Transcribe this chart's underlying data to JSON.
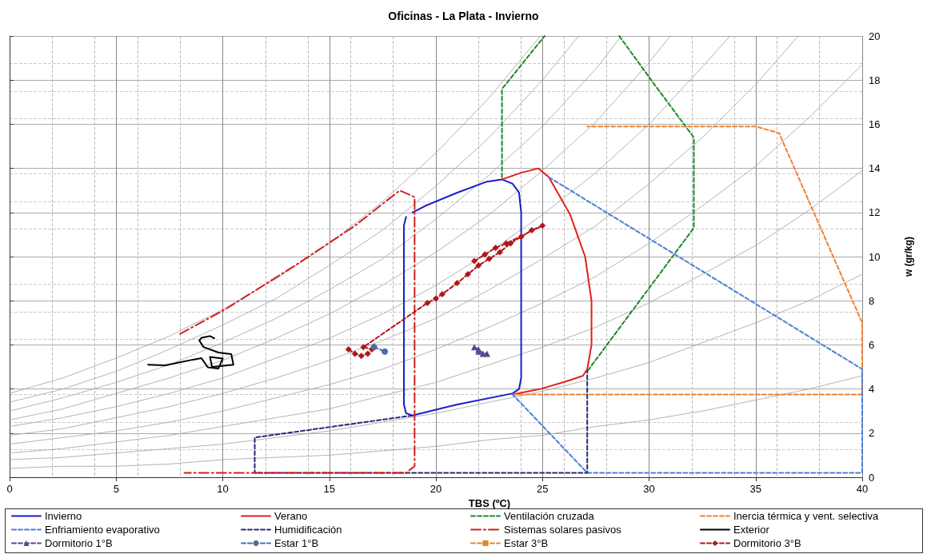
{
  "chart_data": {
    "type": "line",
    "title": "Oficinas - La Plata - Invierno",
    "xlabel": "TBS (ºC)",
    "ylabel": "w (gr/kg)",
    "xlim": [
      0,
      40
    ],
    "xticks": [
      0,
      5,
      10,
      15,
      20,
      25,
      30,
      35,
      40
    ],
    "ylim": [
      0,
      20
    ],
    "yticks": [
      0,
      2,
      4,
      6,
      8,
      10,
      12,
      14,
      16,
      18,
      20
    ],
    "grid": true,
    "legend": "bottom",
    "series": [
      {
        "color": "#a0a0a0",
        "marker": "none",
        "line_style": "solid",
        "x": [
          0,
          2.5,
          5,
          7.5,
          10,
          12.5,
          15,
          17.5,
          20,
          22.5,
          24.9
        ],
        "values": [
          3.8,
          4.5,
          5.4,
          6.4,
          7.6,
          9.0,
          10.6,
          12.5,
          14.7,
          17.2,
          20
        ]
      },
      {
        "color": "#a0a0a0",
        "marker": "none",
        "line_style": "solid",
        "x": [
          0,
          2.5,
          5,
          7.5,
          10,
          12.5,
          15,
          17.5,
          20,
          22.5,
          25,
          26.7
        ],
        "values": [
          3.4,
          4.0,
          4.8,
          5.8,
          6.9,
          8.1,
          9.6,
          11.2,
          13.2,
          15.4,
          18.0,
          20
        ]
      },
      {
        "color": "#a0a0a0",
        "marker": "none",
        "line_style": "solid",
        "x": [
          0,
          2.5,
          5,
          7.5,
          10,
          12.5,
          15,
          17.5,
          20,
          22.5,
          25,
          27.5,
          28.7
        ],
        "values": [
          3.0,
          3.6,
          4.3,
          5.1,
          6.1,
          7.2,
          8.5,
          9.9,
          11.7,
          13.7,
          15.9,
          18.5,
          20
        ]
      },
      {
        "color": "#a0a0a0",
        "marker": "none",
        "line_style": "solid",
        "x": [
          0,
          2.5,
          5,
          7.5,
          10,
          12.5,
          15,
          17.5,
          20,
          22.5,
          25,
          27.5,
          30,
          31
        ],
        "values": [
          2.6,
          3.1,
          3.8,
          4.5,
          5.3,
          6.3,
          7.4,
          8.7,
          10.2,
          11.9,
          13.9,
          16.1,
          18.8,
          20
        ]
      },
      {
        "color": "#a0a0a0",
        "marker": "none",
        "line_style": "solid",
        "x": [
          0,
          2.5,
          5,
          7.5,
          10,
          12.5,
          15,
          17.5,
          20,
          22.5,
          25,
          27.5,
          30,
          32.5,
          33.8
        ],
        "values": [
          2.3,
          2.7,
          3.2,
          3.8,
          4.5,
          5.4,
          6.3,
          7.4,
          8.7,
          10.2,
          11.9,
          13.8,
          16.0,
          18.6,
          20
        ]
      },
      {
        "color": "#a0a0a0",
        "marker": "none",
        "line_style": "solid",
        "x": [
          0,
          2.5,
          5,
          7.5,
          10,
          12.5,
          15,
          17.5,
          20,
          22.5,
          25,
          27.5,
          30,
          32.5,
          35,
          37
        ],
        "values": [
          1.9,
          2.2,
          2.7,
          3.2,
          3.8,
          4.5,
          5.3,
          6.2,
          7.2,
          8.5,
          9.9,
          11.4,
          13.3,
          15.4,
          17.8,
          20
        ]
      },
      {
        "color": "#a0a0a0",
        "marker": "none",
        "line_style": "solid",
        "x": [
          0,
          2.5,
          5,
          7.5,
          10,
          12.5,
          15,
          17.5,
          20,
          22.5,
          25,
          27.5,
          30,
          32.5,
          35,
          37.5,
          40
        ],
        "values": [
          1.5,
          1.8,
          2.1,
          2.5,
          3.0,
          3.6,
          4.2,
          4.9,
          5.8,
          6.8,
          7.9,
          9.1,
          10.6,
          12.3,
          14.1,
          16.3,
          18.7
        ]
      },
      {
        "color": "#a0a0a0",
        "marker": "none",
        "line_style": "solid",
        "x": [
          0,
          2.5,
          5,
          7.5,
          10,
          12.5,
          15,
          17.5,
          20,
          22.5,
          25,
          27.5,
          30,
          32.5,
          35,
          37.5,
          40
        ],
        "values": [
          1.1,
          1.3,
          1.6,
          1.9,
          2.3,
          2.7,
          3.1,
          3.7,
          4.3,
          5.1,
          5.9,
          6.8,
          7.9,
          9.2,
          10.5,
          12.1,
          13.9
        ]
      },
      {
        "color": "#a0a0a0",
        "marker": "none",
        "line_style": "solid",
        "x": [
          0,
          2.5,
          5,
          7.5,
          10,
          12.5,
          15,
          17.5,
          20,
          22.5,
          25,
          27.5,
          30,
          32.5,
          35,
          37.5,
          40
        ],
        "values": [
          0.8,
          0.9,
          1.1,
          1.3,
          1.5,
          1.8,
          2.1,
          2.5,
          2.9,
          3.4,
          3.9,
          4.5,
          5.2,
          6.1,
          7.0,
          8.0,
          9.2
        ]
      },
      {
        "color": "#a0a0a0",
        "marker": "none",
        "line_style": "solid",
        "x": [
          0,
          2.5,
          5,
          7.5,
          10,
          12.5,
          15,
          17.5,
          20,
          22.5,
          25,
          27.5,
          30,
          32.5,
          35,
          37.5,
          40
        ],
        "values": [
          0.4,
          0.5,
          0.5,
          0.6,
          0.8,
          0.9,
          1.0,
          1.2,
          1.4,
          1.7,
          1.9,
          2.3,
          2.6,
          3.0,
          3.5,
          4.0,
          4.6
        ]
      },
      {
        "name": "Invierno",
        "color": "#1c1cc8",
        "marker": "none",
        "line_style": "solid",
        "x": [
          18.9,
          19.5,
          21,
          22.4,
          23.1,
          23.6,
          23.9,
          24.0,
          24.0,
          23.9,
          23.6,
          21,
          18.9,
          18.6,
          18.5,
          18.5,
          18.6
        ],
        "values": [
          12.0,
          12.3,
          12.9,
          13.4,
          13.5,
          13.3,
          12.9,
          12,
          4.5,
          4.0,
          3.8,
          3.3,
          2.8,
          2.9,
          3.3,
          11.4,
          11.8
        ]
      },
      {
        "name": "Verano",
        "color": "#e02020",
        "marker": "none",
        "line_style": "solid",
        "x": [
          23.1,
          24.0,
          24.8,
          25.3,
          26.3,
          27.0,
          27.3,
          27.3,
          27.1,
          26.9,
          26.3,
          24.9,
          23.6
        ],
        "values": [
          13.5,
          13.8,
          14.0,
          13.6,
          11.9,
          10,
          8,
          6,
          4.9,
          4.6,
          4.4,
          4.0,
          3.75
        ]
      },
      {
        "name": "Ventilación cruzada",
        "color": "#1a8a2a",
        "marker": "none",
        "line_style": "dashed",
        "x": [
          23.1,
          23.1,
          25.1,
          26.8,
          28.6,
          30.1,
          32.1,
          32.1,
          27.1
        ],
        "values": [
          13.6,
          17.6,
          20,
          null,
          20,
          18,
          15.4,
          11.3,
          4.8
        ]
      },
      {
        "name": "Inercia térmica y vent. selectiva",
        "color": "#f08030",
        "marker": "none",
        "line_style": "dashed",
        "x": [
          23.6,
          40,
          40,
          36.1,
          35,
          27.1
        ],
        "values": [
          3.75,
          3.75,
          7.0,
          15.6,
          15.9,
          15.9
        ]
      },
      {
        "name": "Enfriamiento evaporativo",
        "color": "#4a7fd8",
        "marker": "none",
        "line_style": "dashed",
        "x": [
          25.3,
          40,
          40,
          27.1,
          23.6
        ],
        "values": [
          13.6,
          4.9,
          0.2,
          0.2,
          3.75
        ]
      },
      {
        "name": "Humidificación",
        "color": "#2a2a7a",
        "marker": "none",
        "line_style": "dashed",
        "x": [
          18.9,
          11.5,
          11.5,
          27.1,
          27.1
        ],
        "values": [
          2.8,
          1.8,
          0.2,
          0.2,
          4.8
        ]
      },
      {
        "name": "Sistemas solares pasivos",
        "color": "#d02020",
        "marker": "none",
        "line_style": "dashdot",
        "x": [
          8.0,
          10.1,
          13.4,
          16.2,
          18.3,
          19.0,
          19.0,
          18.6,
          8.2
        ],
        "values": [
          6.5,
          7.6,
          9.6,
          11.4,
          13.0,
          12.7,
          0.5,
          0.2,
          0.2
        ]
      },
      {
        "name": "Exterior",
        "color": "#000000",
        "marker": "none",
        "line_style": "solid",
        "x": [
          6.5,
          7.3,
          8.6,
          9.0,
          9.3,
          9.8,
          10.0,
          9.4,
          9.5,
          10.5,
          10.4,
          9.8,
          9.1,
          8.9,
          9.0,
          9.4,
          9.6
        ],
        "values": [
          5.1,
          5.07,
          5.33,
          5.4,
          4.98,
          4.93,
          5.38,
          5.45,
          5.0,
          5.1,
          5.58,
          5.65,
          5.9,
          6.2,
          6.32,
          6.4,
          6.3
        ]
      },
      {
        "name": "Dormitorio 1°B",
        "color": "#5a4a8a",
        "marker": "triangle",
        "line_style": "dashed",
        "x": [
          21.8,
          22.0,
          22.2,
          22.4,
          22.0
        ],
        "values": [
          5.9,
          5.8,
          5.6,
          5.6,
          5.7
        ]
      },
      {
        "name": "Estar 1°B",
        "color": "#4a6fa5",
        "marker": "circle",
        "line_style": "dashed",
        "x": [
          17.1,
          17.6
        ],
        "values": [
          5.9,
          5.7
        ]
      },
      {
        "name": "Estar 3°B",
        "color": "#e08a2a",
        "marker": "square",
        "line_style": "dashed"
      },
      {
        "name": "Dormitorio 3°B",
        "color": "#b01818",
        "marker": "diamond",
        "line_style": "dashed",
        "x": [
          15.9,
          16.2,
          16.5,
          16.8,
          17.0,
          16.6,
          19.6,
          20.0,
          20.3,
          21.0,
          21.5,
          22.0,
          22.5,
          23.0,
          23.5,
          24.0,
          24.5,
          25.0,
          23.3,
          22.8,
          22.3,
          21.8
        ],
        "values": [
          5.8,
          5.6,
          5.5,
          5.6,
          5.8,
          5.9,
          7.9,
          8.1,
          8.3,
          8.8,
          9.2,
          9.6,
          9.9,
          10.2,
          10.6,
          10.9,
          11.2,
          11.4,
          10.6,
          10.4,
          10.1,
          9.8
        ]
      }
    ]
  }
}
